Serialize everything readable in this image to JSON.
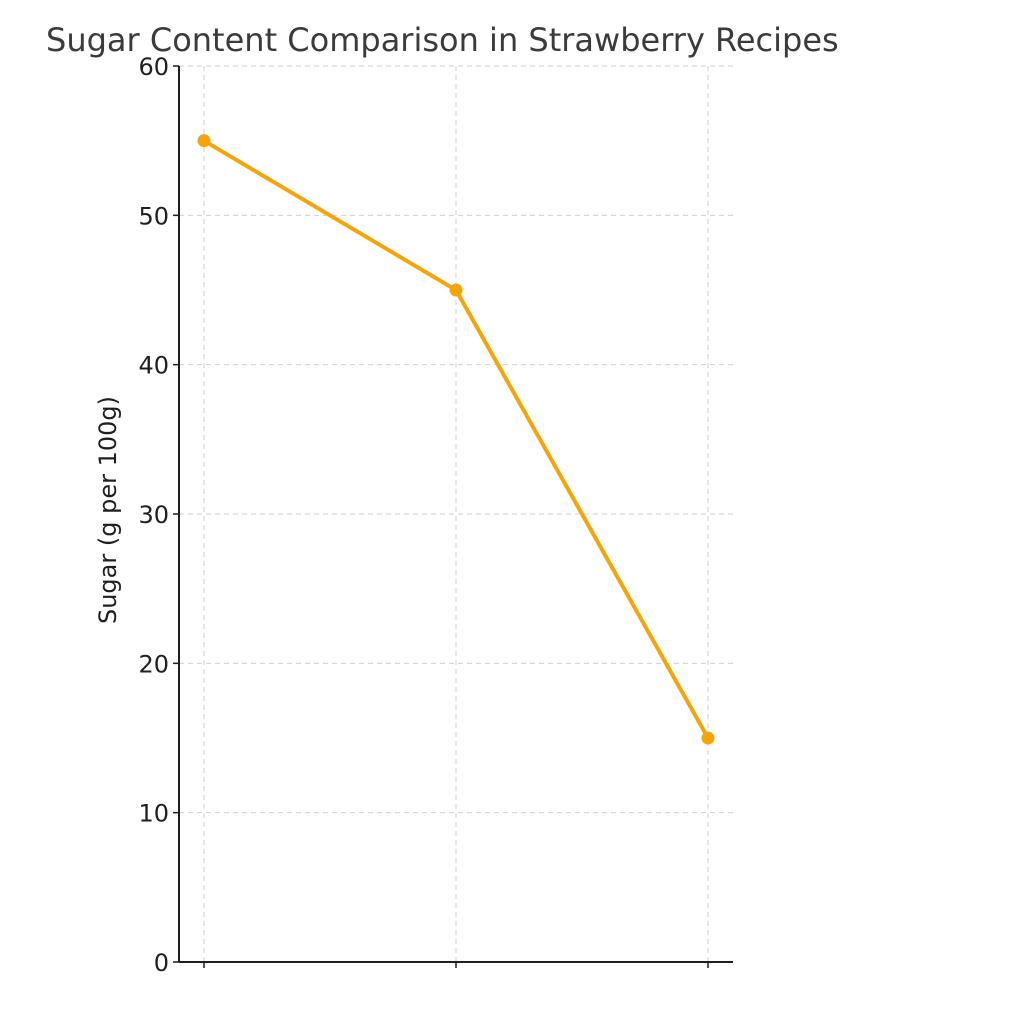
{
  "chart_data": {
    "type": "line",
    "title": "Sugar Content Comparison in Strawberry Recipes",
    "xlabel": "",
    "ylabel": "Sugar (g per 100g)",
    "categories": [
      "",
      "",
      ""
    ],
    "series": [
      {
        "values": [
          55,
          45,
          15
        ],
        "color": "#f5a50a"
      }
    ],
    "ylim": [
      0,
      60
    ],
    "yticks": [
      0,
      10,
      20,
      30,
      40,
      50,
      60
    ],
    "grid": true,
    "legend": "none"
  }
}
